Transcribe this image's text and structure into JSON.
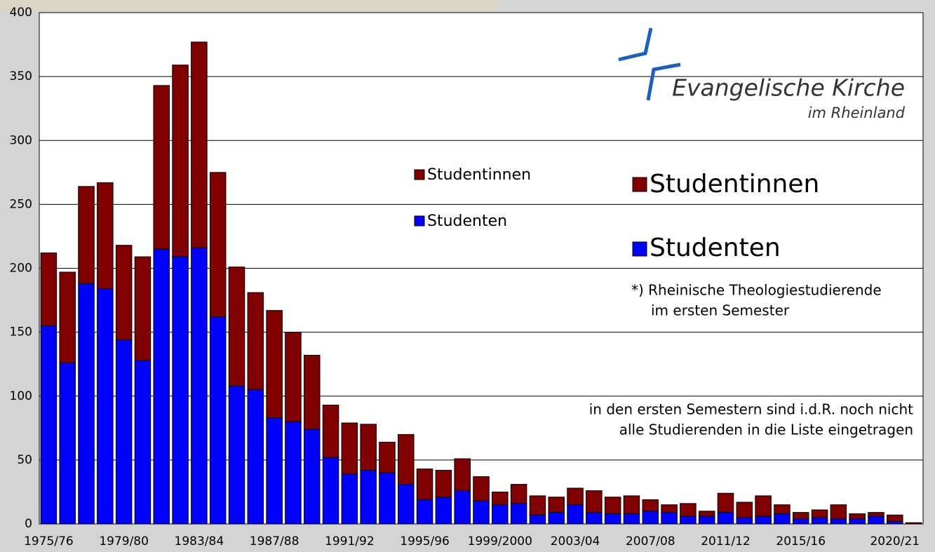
{
  "chart_data": {
    "type": "stacked_bar",
    "categories": [
      "1975/76",
      null,
      null,
      null,
      "1979/80",
      null,
      null,
      null,
      "1983/84",
      null,
      null,
      null,
      "1987/88",
      null,
      null,
      null,
      "1991/92",
      null,
      null,
      null,
      "1995/96",
      null,
      null,
      null,
      "1999/2000",
      null,
      null,
      null,
      "2003/04",
      null,
      null,
      null,
      "2007/08",
      null,
      null,
      null,
      "2011/12",
      null,
      null,
      null,
      "2015/16",
      null,
      null,
      null,
      null,
      "2020/21",
      null
    ],
    "series": [
      {
        "name": "Studenten",
        "color": "#0000ff",
        "values": [
          155,
          126,
          188,
          184,
          144,
          128,
          215,
          209,
          216,
          162,
          108,
          105,
          83,
          80,
          74,
          52,
          39,
          42,
          40,
          31,
          19,
          21,
          26,
          18,
          15,
          16,
          7,
          9,
          15,
          9,
          8,
          8,
          10,
          9,
          6,
          6,
          9,
          5,
          6,
          8,
          4,
          5,
          4,
          4,
          6,
          2,
          0
        ]
      },
      {
        "name": "Studentinnen",
        "color": "#800000",
        "values": [
          57,
          71,
          76,
          83,
          74,
          81,
          128,
          150,
          161,
          113,
          93,
          76,
          84,
          70,
          58,
          41,
          40,
          36,
          24,
          39,
          24,
          21,
          25,
          19,
          10,
          15,
          15,
          12,
          13,
          17,
          13,
          14,
          9,
          6,
          10,
          4,
          15,
          12,
          16,
          7,
          5,
          6,
          11,
          4,
          3,
          5,
          1
        ]
      }
    ],
    "ylim": [
      0,
      400
    ],
    "yticks": [
      0,
      50,
      100,
      150,
      200,
      250,
      300,
      350,
      400
    ],
    "grid": true,
    "annotations": [
      "*) Rheinische Theologiestudierende",
      "im ersten Semester",
      "in den ersten Semestern sind i.d.R. noch nicht",
      "alle Studierenden in die Liste eingetragen"
    ],
    "logo": {
      "name": "Evangelische Kirche",
      "region": "im Rheinland"
    }
  }
}
